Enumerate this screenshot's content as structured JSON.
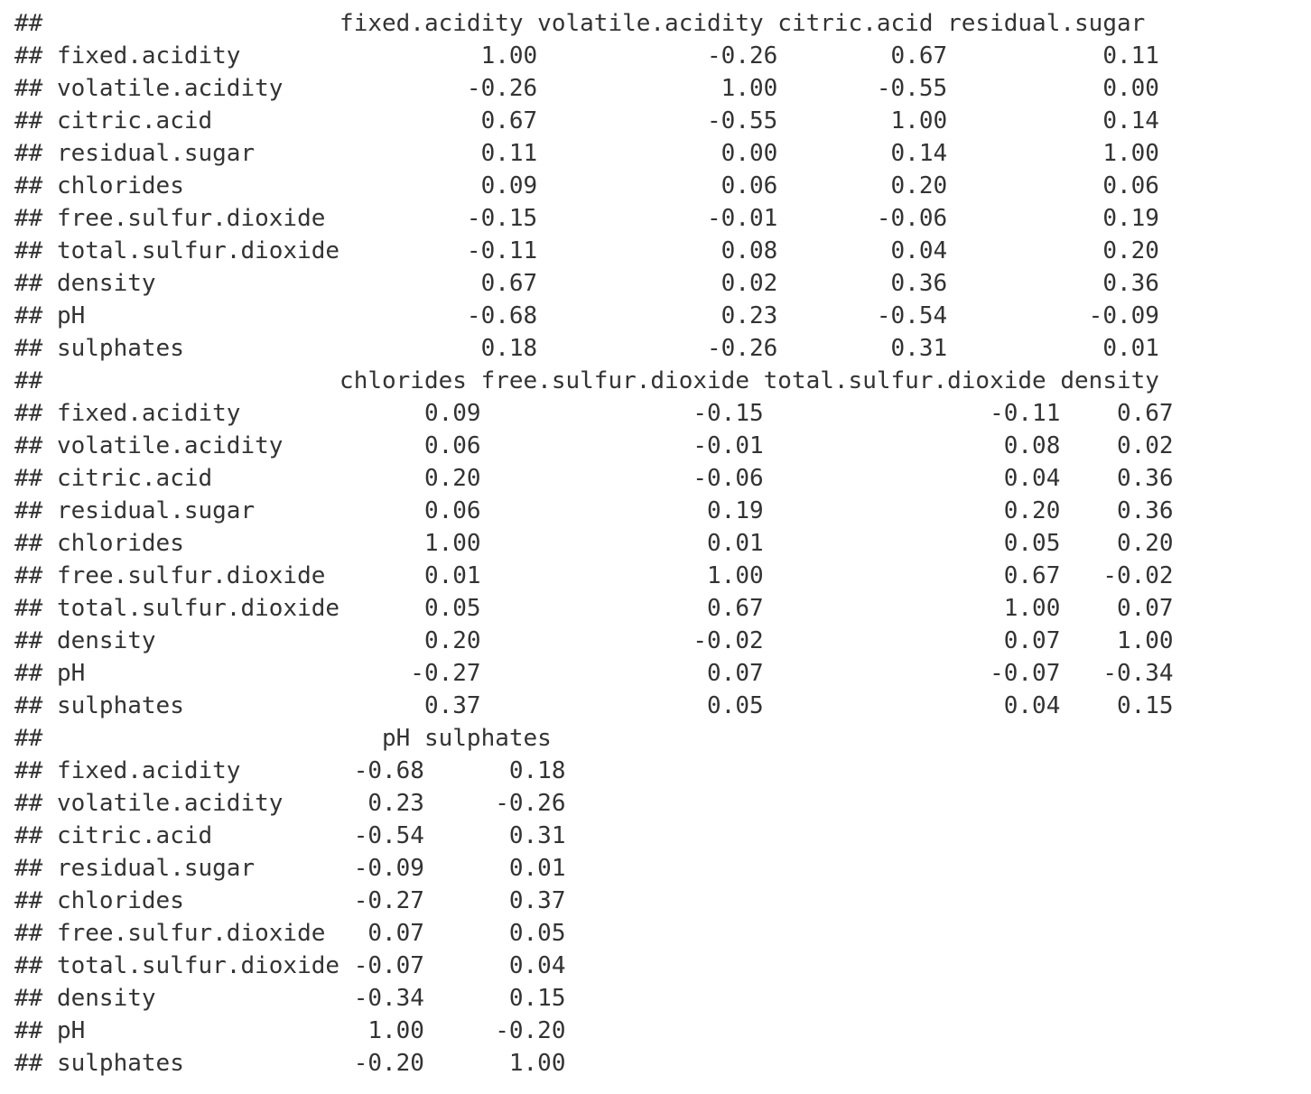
{
  "console": {
    "prefix": "##",
    "blocks": [
      {
        "header": "                    fixed.acidity volatile.acidity citric.acid residual.sugar",
        "rows": [
          "fixed.acidity                 1.00            -0.26        0.67           0.11",
          "volatile.acidity             -0.26             1.00       -0.55           0.00",
          "citric.acid                   0.67            -0.55        1.00           0.14",
          "residual.sugar                0.11             0.00        0.14           1.00",
          "chlorides                     0.09             0.06        0.20           0.06",
          "free.sulfur.dioxide          -0.15            -0.01       -0.06           0.19",
          "total.sulfur.dioxide         -0.11             0.08        0.04           0.20",
          "density                       0.67             0.02        0.36           0.36",
          "pH                           -0.68             0.23       -0.54          -0.09",
          "sulphates                     0.18            -0.26        0.31           0.01"
        ]
      },
      {
        "header": "                    chlorides free.sulfur.dioxide total.sulfur.dioxide density",
        "rows": [
          "fixed.acidity             0.09               -0.15                -0.11    0.67",
          "volatile.acidity          0.06               -0.01                 0.08    0.02",
          "citric.acid               0.20               -0.06                 0.04    0.36",
          "residual.sugar            0.06                0.19                 0.20    0.36",
          "chlorides                 1.00                0.01                 0.05    0.20",
          "free.sulfur.dioxide       0.01                1.00                 0.67   -0.02",
          "total.sulfur.dioxide      0.05                0.67                 1.00    0.07",
          "density                   0.20               -0.02                 0.07    1.00",
          "pH                       -0.27                0.07                -0.07   -0.34",
          "sulphates                 0.37                0.05                 0.04    0.15"
        ]
      },
      {
        "header": "                       pH sulphates",
        "rows": [
          "fixed.acidity        -0.68      0.18",
          "volatile.acidity      0.23     -0.26",
          "citric.acid          -0.54      0.31",
          "residual.sugar       -0.09      0.01",
          "chlorides            -0.27      0.37",
          "free.sulfur.dioxide   0.07      0.05",
          "total.sulfur.dioxide -0.07      0.04",
          "density              -0.34      0.15",
          "pH                    1.00     -0.20",
          "sulphates            -0.20      1.00"
        ]
      }
    ]
  }
}
